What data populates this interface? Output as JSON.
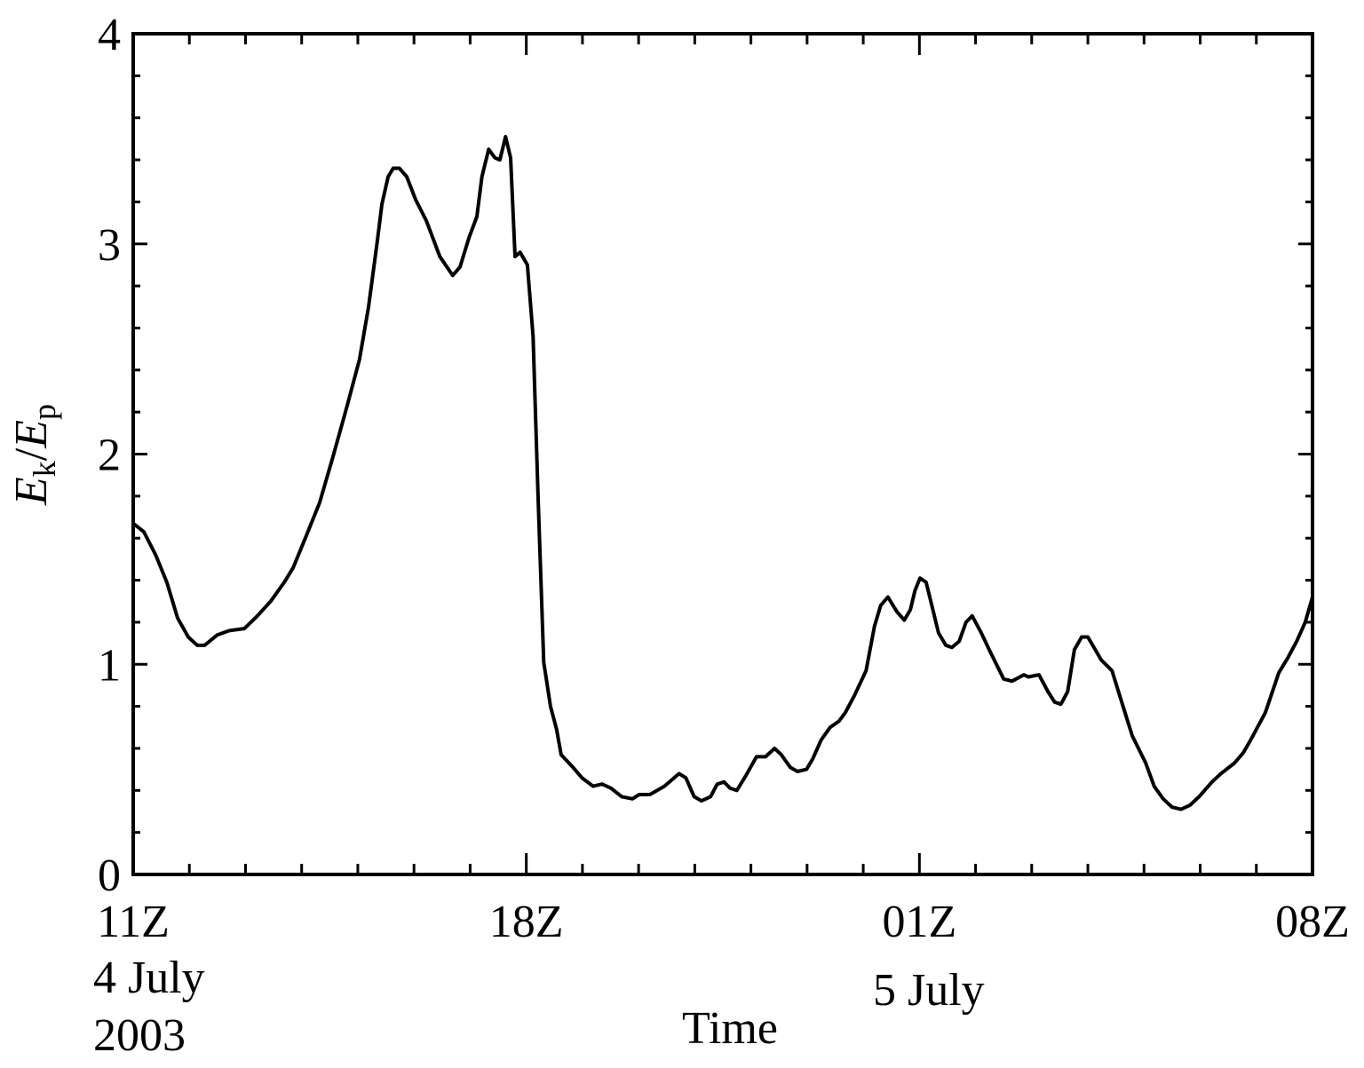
{
  "chart_data": {
    "type": "line",
    "xlabel": "Time",
    "ylabel": [
      "E",
      "k",
      "/",
      "E",
      "p"
    ],
    "annotations": [
      "4 July",
      "2003",
      "5 July"
    ],
    "xlim": [
      11,
      32
    ],
    "xticks": [
      {
        "value": 11,
        "label": "11Z"
      },
      {
        "value": 18,
        "label": "18Z"
      },
      {
        "value": 25,
        "label": "01Z"
      },
      {
        "value": 32,
        "label": "08Z"
      }
    ],
    "xminor_ticks": [
      12,
      13,
      14,
      15,
      16,
      17,
      19,
      20,
      21,
      22,
      23,
      24,
      26,
      27,
      28,
      29,
      30,
      31
    ],
    "ylim": [
      0,
      4
    ],
    "yticks": [
      0,
      1,
      2,
      3,
      4
    ],
    "yminor_ticks": [
      0.2,
      0.4,
      0.6,
      0.8,
      1.2,
      1.4,
      1.6,
      1.8,
      2.2,
      2.4,
      2.6,
      2.8,
      3.2,
      3.4,
      3.6,
      3.8
    ],
    "series": [
      {
        "color": "#000000",
        "x": [
          11.0,
          11.19,
          11.4,
          11.6,
          11.79,
          11.98,
          12.14,
          12.27,
          12.5,
          12.71,
          12.98,
          13.21,
          13.45,
          13.69,
          13.85,
          14.08,
          14.32,
          14.56,
          14.8,
          15.03,
          15.19,
          15.35,
          15.43,
          15.54,
          15.63,
          15.74,
          15.87,
          16.03,
          16.22,
          16.46,
          16.69,
          16.82,
          16.98,
          17.12,
          17.21,
          17.33,
          17.44,
          17.53,
          17.63,
          17.72,
          17.8,
          17.89,
          18.02,
          18.12,
          18.21,
          18.31,
          18.43,
          18.54,
          18.62,
          18.83,
          18.99,
          19.19,
          19.35,
          19.51,
          19.7,
          19.89,
          20.01,
          20.2,
          20.46,
          20.72,
          20.84,
          20.99,
          21.12,
          21.28,
          21.4,
          21.52,
          21.63,
          21.75,
          21.91,
          22.1,
          22.26,
          22.42,
          22.54,
          22.7,
          22.83,
          22.99,
          23.1,
          23.25,
          23.41,
          23.57,
          23.68,
          23.84,
          24.05,
          24.2,
          24.31,
          24.44,
          24.6,
          24.73,
          24.84,
          24.92,
          25.01,
          25.12,
          25.23,
          25.34,
          25.47,
          25.58,
          25.71,
          25.83,
          25.94,
          26.1,
          26.26,
          26.5,
          26.65,
          26.86,
          26.94,
          27.13,
          27.29,
          27.41,
          27.52,
          27.64,
          27.76,
          27.89,
          28.0,
          28.24,
          28.43,
          28.58,
          28.79,
          29.03,
          29.18,
          29.34,
          29.5,
          29.66,
          29.82,
          29.98,
          30.21,
          30.37,
          30.61,
          30.77,
          30.92,
          31.16,
          31.4,
          31.56,
          31.72,
          31.87,
          32.0
        ],
        "values": [
          1.67,
          1.63,
          1.52,
          1.39,
          1.22,
          1.13,
          1.09,
          1.09,
          1.14,
          1.16,
          1.17,
          1.23,
          1.3,
          1.39,
          1.46,
          1.61,
          1.77,
          1.99,
          2.22,
          2.45,
          2.7,
          3.02,
          3.19,
          3.32,
          3.36,
          3.36,
          3.32,
          3.21,
          3.11,
          2.94,
          2.85,
          2.89,
          3.03,
          3.13,
          3.32,
          3.45,
          3.41,
          3.4,
          3.51,
          3.41,
          2.94,
          2.96,
          2.9,
          2.56,
          1.8,
          1.01,
          0.8,
          0.69,
          0.57,
          0.51,
          0.46,
          0.42,
          0.43,
          0.41,
          0.37,
          0.36,
          0.38,
          0.38,
          0.42,
          0.48,
          0.46,
          0.37,
          0.35,
          0.37,
          0.43,
          0.44,
          0.41,
          0.4,
          0.47,
          0.56,
          0.56,
          0.6,
          0.57,
          0.51,
          0.49,
          0.5,
          0.55,
          0.64,
          0.7,
          0.73,
          0.77,
          0.85,
          0.97,
          1.18,
          1.28,
          1.32,
          1.25,
          1.21,
          1.26,
          1.35,
          1.41,
          1.39,
          1.27,
          1.15,
          1.09,
          1.08,
          1.11,
          1.2,
          1.23,
          1.15,
          1.06,
          0.93,
          0.92,
          0.95,
          0.94,
          0.95,
          0.87,
          0.82,
          0.81,
          0.87,
          1.07,
          1.13,
          1.13,
          1.02,
          0.97,
          0.84,
          0.66,
          0.53,
          0.42,
          0.36,
          0.32,
          0.31,
          0.33,
          0.37,
          0.44,
          0.48,
          0.53,
          0.58,
          0.65,
          0.77,
          0.96,
          1.03,
          1.11,
          1.2,
          1.32
        ]
      }
    ]
  }
}
